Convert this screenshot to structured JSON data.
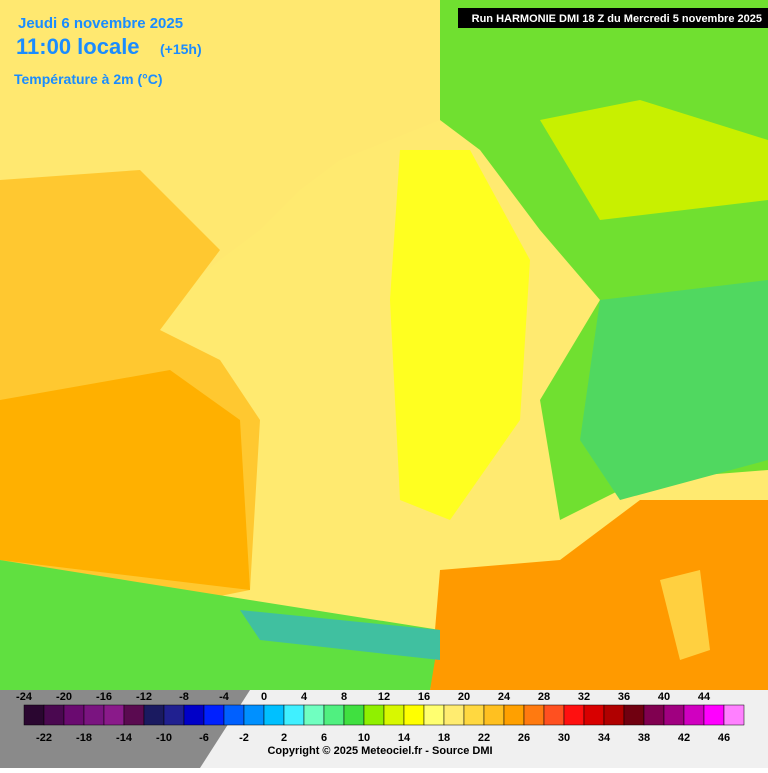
{
  "header": {
    "date": "Jeudi 6 novembre 2025",
    "time": "11:00 locale",
    "lead": "(+15h)",
    "variable": "Température à 2m (°C)",
    "run": "Run HARMONIE DMI 18 Z du Mercredi 5 novembre 2025"
  },
  "legend": {
    "swatches": [
      {
        "value": -24,
        "color": "#2a0630"
      },
      {
        "value": -22,
        "color": "#4a0850"
      },
      {
        "value": -20,
        "color": "#6a0a70"
      },
      {
        "value": -18,
        "color": "#7a1480"
      },
      {
        "value": -16,
        "color": "#8a1a8a"
      },
      {
        "value": -14,
        "color": "#5a0a50"
      },
      {
        "value": -12,
        "color": "#1a1a60"
      },
      {
        "value": -10,
        "color": "#202090"
      },
      {
        "value": -8,
        "color": "#0000c8"
      },
      {
        "value": -6,
        "color": "#0020ff"
      },
      {
        "value": -4,
        "color": "#0060ff"
      },
      {
        "value": -2,
        "color": "#0090ff"
      },
      {
        "value": 0,
        "color": "#00c0ff"
      },
      {
        "value": 2,
        "color": "#40f0ff"
      },
      {
        "value": 4,
        "color": "#70ffc0"
      },
      {
        "value": 6,
        "color": "#50f080"
      },
      {
        "value": 8,
        "color": "#40e040"
      },
      {
        "value": 10,
        "color": "#90f000"
      },
      {
        "value": 12,
        "color": "#d8f800"
      },
      {
        "value": 14,
        "color": "#ffff00"
      },
      {
        "value": 16,
        "color": "#ffff70"
      },
      {
        "value": 18,
        "color": "#ffec70"
      },
      {
        "value": 20,
        "color": "#ffd840"
      },
      {
        "value": 22,
        "color": "#ffc020"
      },
      {
        "value": 24,
        "color": "#ffa000"
      },
      {
        "value": 26,
        "color": "#ff7a10"
      },
      {
        "value": 28,
        "color": "#ff5020"
      },
      {
        "value": 30,
        "color": "#ff1010"
      },
      {
        "value": 32,
        "color": "#d80000"
      },
      {
        "value": 34,
        "color": "#b00000"
      },
      {
        "value": 36,
        "color": "#700010"
      },
      {
        "value": 38,
        "color": "#800050"
      },
      {
        "value": 40,
        "color": "#a00080"
      },
      {
        "value": 42,
        "color": "#d000c0"
      },
      {
        "value": 44,
        "color": "#ff00ff"
      },
      {
        "value": 46,
        "color": "#ff80ff"
      }
    ]
  },
  "footer": {
    "copyright": "Copyright © 2025 Meteociel.fr - Source DMI"
  }
}
